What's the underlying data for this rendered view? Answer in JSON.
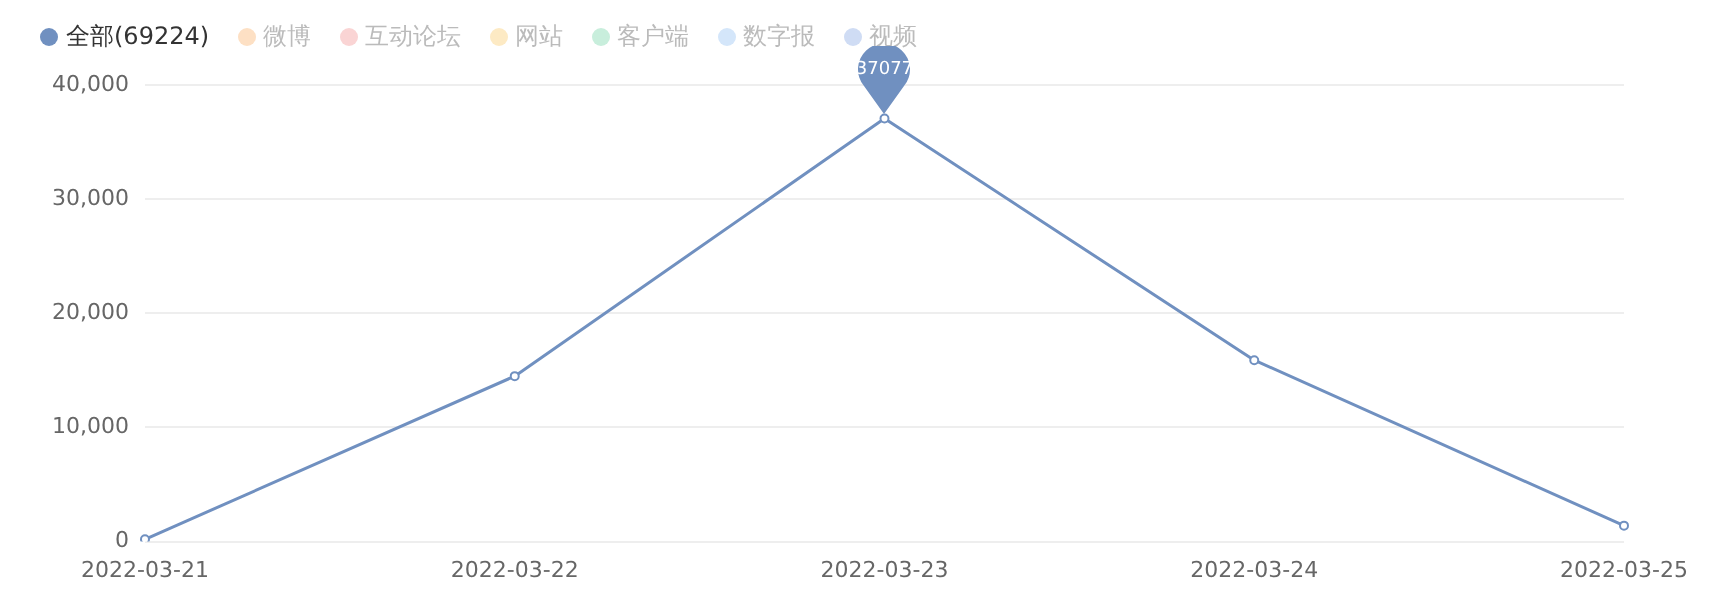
{
  "chart_data": {
    "type": "line",
    "categories": [
      "2022-03-21",
      "2022-03-22",
      "2022-03-23",
      "2022-03-24",
      "2022-03-25"
    ],
    "series": [
      {
        "name": "全部(69224)",
        "color": "#7090c0",
        "values": [
          200,
          14500,
          37077,
          15900,
          1400
        ]
      },
      {
        "name": "微博",
        "color": "#fde0c4",
        "values": [
          null,
          null,
          null,
          null,
          null
        ]
      },
      {
        "name": "互动论坛",
        "color": "#fad4d4",
        "values": [
          null,
          null,
          null,
          null,
          null
        ]
      },
      {
        "name": "网站",
        "color": "#fdeac4",
        "values": [
          null,
          null,
          null,
          null,
          null
        ]
      },
      {
        "name": "客户端",
        "color": "#c8eedc",
        "values": [
          null,
          null,
          null,
          null,
          null
        ]
      },
      {
        "name": "数字报",
        "color": "#d4e6fa",
        "values": [
          null,
          null,
          null,
          null,
          null
        ]
      },
      {
        "name": "视频",
        "color": "#cfdcf4",
        "values": [
          null,
          null,
          null,
          null,
          null
        ]
      }
    ],
    "ylim": [
      0,
      40000
    ],
    "yticks": [
      0,
      {
        "value": 10000,
        "label": "10,000"
      },
      {
        "value": 20000,
        "label": "20,000"
      },
      {
        "value": 30000,
        "label": "30,000"
      },
      {
        "value": 40000,
        "label": "40,000"
      }
    ],
    "grid": "y",
    "legend": "top left",
    "marker": "circle",
    "line_style": "solid",
    "annotations": [
      {
        "text": "37077",
        "x": "2022-03-23",
        "y": 37077
      }
    ]
  }
}
